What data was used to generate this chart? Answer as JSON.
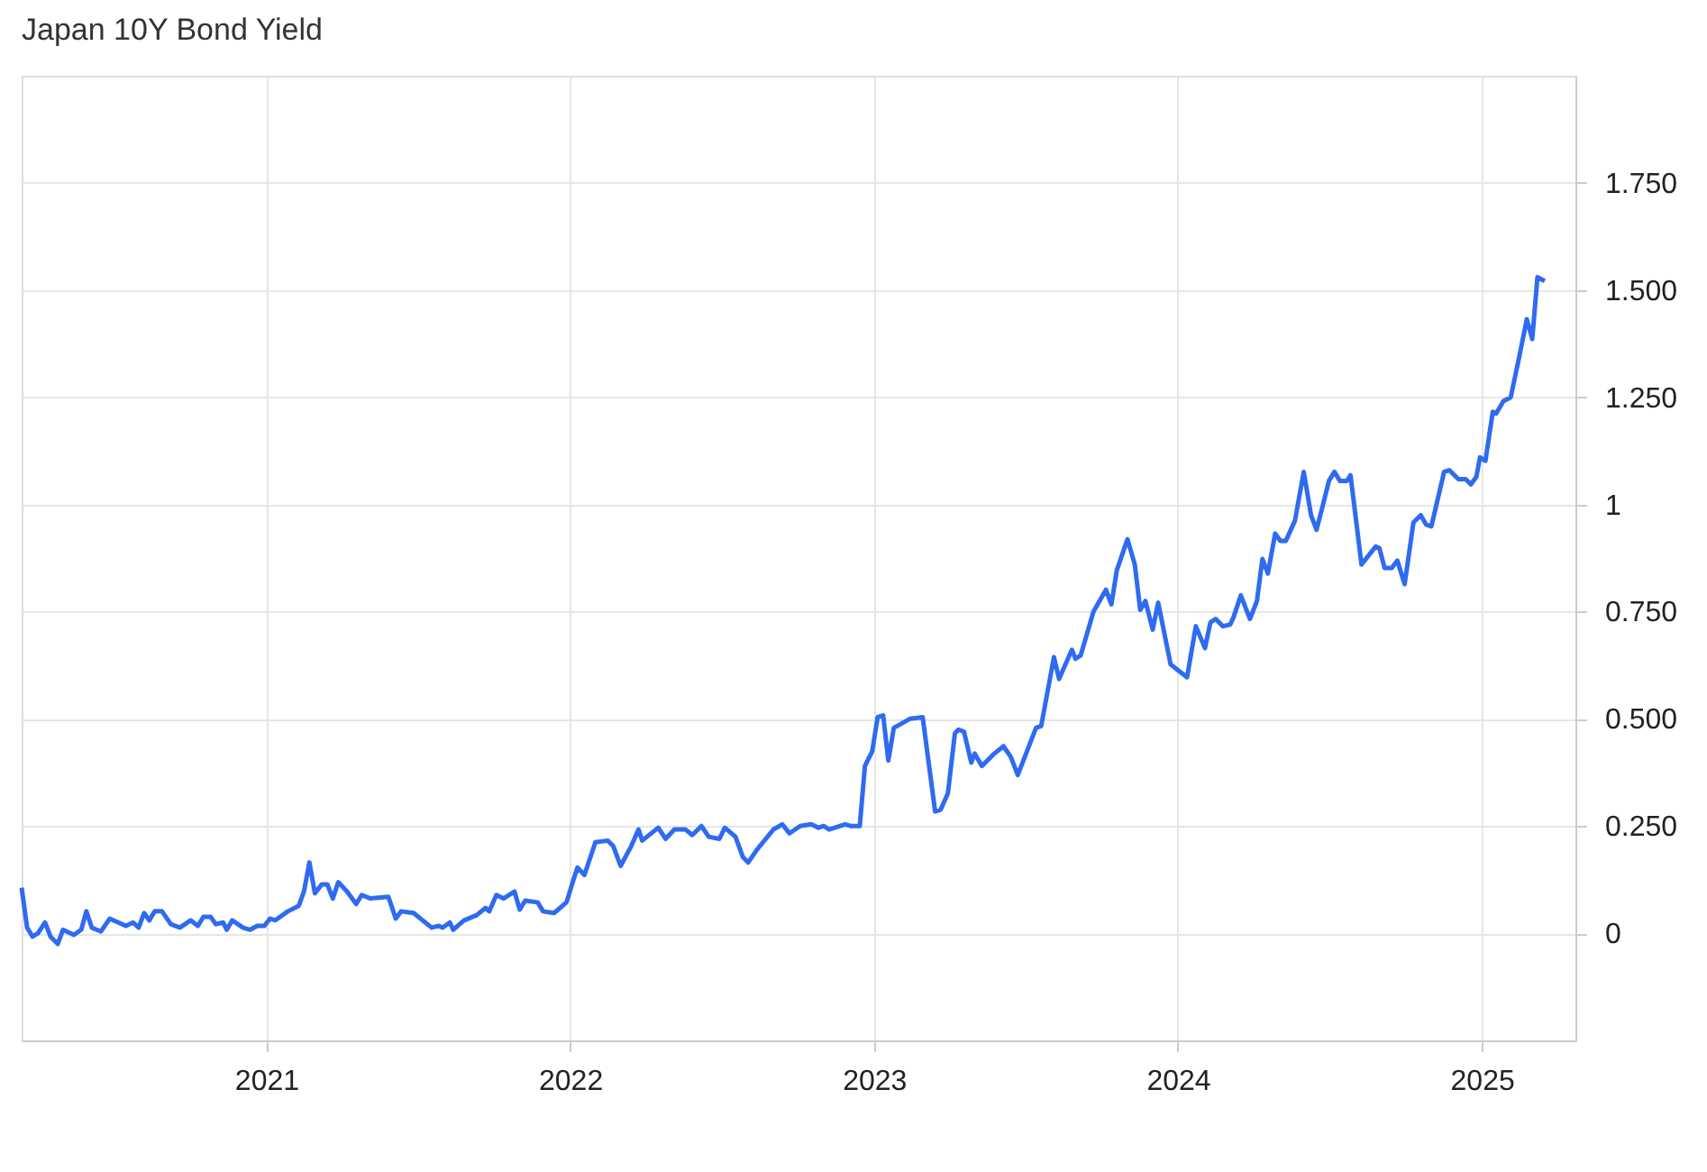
{
  "chart_data": {
    "type": "line",
    "title": "Japan 10Y Bond Yield",
    "x": [
      2020.195,
      2020.213,
      2020.231,
      2020.249,
      2020.272,
      2020.29,
      2020.314,
      2020.331,
      2020.367,
      2020.391,
      2020.408,
      2020.426,
      2020.456,
      2020.485,
      2020.538,
      2020.562,
      2020.58,
      2020.598,
      2020.615,
      2020.633,
      2020.657,
      2020.686,
      2020.716,
      2020.751,
      2020.775,
      2020.793,
      2020.817,
      2020.834,
      2020.858,
      2020.87,
      2020.888,
      2020.923,
      2020.947,
      2020.97,
      2020.994,
      2021.012,
      2021.03,
      2021.071,
      2021.107,
      2021.124,
      2021.142,
      2021.16,
      2021.183,
      2021.201,
      2021.219,
      2021.237,
      2021.266,
      2021.296,
      2021.314,
      2021.343,
      2021.402,
      2021.426,
      2021.444,
      2021.485,
      2021.544,
      2021.568,
      2021.58,
      2021.604,
      2021.615,
      2021.651,
      2021.692,
      2021.722,
      2021.734,
      2021.757,
      2021.781,
      2021.817,
      2021.834,
      2021.852,
      2021.893,
      2021.911,
      2021.947,
      2021.988,
      2022.012,
      2022.024,
      2022.047,
      2022.083,
      2022.124,
      2022.142,
      2022.166,
      2022.201,
      2022.225,
      2022.237,
      2022.29,
      2022.314,
      2022.343,
      2022.379,
      2022.402,
      2022.432,
      2022.456,
      2022.491,
      2022.509,
      2022.544,
      2022.568,
      2022.586,
      2022.615,
      2022.669,
      2022.698,
      2022.722,
      2022.757,
      2022.793,
      2022.817,
      2022.834,
      2022.852,
      2022.905,
      2022.923,
      2022.953,
      2022.97,
      2022.994,
      2023.012,
      2023.03,
      2023.047,
      2023.065,
      2023.118,
      2023.16,
      2023.201,
      2023.219,
      2023.243,
      2023.266,
      2023.278,
      2023.296,
      2023.32,
      2023.331,
      2023.355,
      2023.396,
      2023.426,
      2023.45,
      2023.473,
      2023.533,
      2023.55,
      2023.592,
      2023.609,
      2023.651,
      2023.663,
      2023.68,
      2023.722,
      2023.763,
      2023.781,
      2023.799,
      2023.834,
      2023.858,
      2023.876,
      2023.893,
      2023.917,
      2023.935,
      2023.976,
      2024.03,
      2024.059,
      2024.089,
      2024.107,
      2024.124,
      2024.148,
      2024.172,
      2024.183,
      2024.207,
      2024.237,
      2024.26,
      2024.278,
      2024.296,
      2024.32,
      2024.337,
      2024.355,
      2024.385,
      2024.414,
      2024.438,
      2024.456,
      2024.473,
      2024.497,
      2024.515,
      2024.533,
      2024.556,
      2024.568,
      2024.604,
      2024.651,
      2024.663,
      2024.68,
      2024.704,
      2024.722,
      2024.746,
      2024.775,
      2024.799,
      2024.817,
      2024.834,
      2024.876,
      2024.893,
      2024.923,
      2024.947,
      2024.964,
      2024.982,
      2024.994,
      2025.012,
      2025.036,
      2025.047,
      2025.071,
      2025.095,
      2025.124,
      2025.148,
      2025.166,
      2025.183,
      2025.207
    ],
    "series": [
      {
        "color": "#2f6bf0",
        "values": [
          0.106,
          0.013,
          -0.008,
          0,
          0.025,
          -0.008,
          -0.025,
          0.008,
          -0.004,
          0.008,
          0.051,
          0.013,
          0.004,
          0.034,
          0.017,
          0.025,
          0.013,
          0.047,
          0.03,
          0.051,
          0.051,
          0.021,
          0.013,
          0.03,
          0.017,
          0.038,
          0.038,
          0.021,
          0.025,
          0.008,
          0.03,
          0.013,
          0.008,
          0.017,
          0.017,
          0.034,
          0.03,
          0.051,
          0.064,
          0.097,
          0.165,
          0.093,
          0.114,
          0.114,
          0.081,
          0.119,
          0.097,
          0.068,
          0.089,
          0.081,
          0.085,
          0.034,
          0.051,
          0.047,
          0.013,
          0.017,
          0.013,
          0.025,
          0.008,
          0.03,
          0.042,
          0.059,
          0.051,
          0.089,
          0.081,
          0.097,
          0.055,
          0.076,
          0.072,
          0.051,
          0.047,
          0.072,
          0.127,
          0.153,
          0.136,
          0.212,
          0.216,
          0.203,
          0.157,
          0.203,
          0.242,
          0.216,
          0.246,
          0.22,
          0.242,
          0.242,
          0.229,
          0.25,
          0.225,
          0.22,
          0.246,
          0.225,
          0.178,
          0.165,
          0.195,
          0.242,
          0.254,
          0.233,
          0.25,
          0.254,
          0.246,
          0.25,
          0.242,
          0.254,
          0.25,
          0.25,
          0.39,
          0.424,
          0.504,
          0.508,
          0.403,
          0.479,
          0.5,
          0.504,
          0.284,
          0.288,
          0.326,
          0.466,
          0.475,
          0.47,
          0.398,
          0.419,
          0.39,
          0.419,
          0.436,
          0.411,
          0.369,
          0.479,
          0.483,
          0.644,
          0.593,
          0.661,
          0.64,
          0.648,
          0.75,
          0.801,
          0.767,
          0.847,
          0.919,
          0.86,
          0.754,
          0.775,
          0.708,
          0.771,
          0.627,
          0.597,
          0.716,
          0.665,
          0.725,
          0.733,
          0.716,
          0.72,
          0.737,
          0.788,
          0.733,
          0.775,
          0.873,
          0.839,
          0.932,
          0.915,
          0.915,
          0.962,
          1.076,
          0.975,
          0.941,
          0.987,
          1.055,
          1.076,
          1.055,
          1.055,
          1.068,
          0.86,
          0.902,
          0.898,
          0.852,
          0.852,
          0.869,
          0.814,
          0.958,
          0.975,
          0.953,
          0.949,
          1.076,
          1.08,
          1.059,
          1.059,
          1.047,
          1.064,
          1.11,
          1.102,
          1.216,
          1.212,
          1.241,
          1.25,
          1.347,
          1.432,
          1.386,
          1.53,
          1.521
        ]
      }
    ],
    "xlim": [
      2020.195,
      2025.308
    ],
    "xticks": [
      2021,
      2022,
      2023,
      2024,
      2025
    ],
    "ylim": [
      -0.25,
      2.0
    ],
    "yticks": [
      0,
      {
        "value": 0.25,
        "label": "0.250"
      },
      {
        "value": 0.5,
        "label": "0.500"
      },
      {
        "value": 0.75,
        "label": "0.750"
      },
      1,
      {
        "value": 1.25,
        "label": "1.250"
      },
      {
        "value": 1.5,
        "label": "1.500"
      },
      {
        "value": 1.75,
        "label": "1.750"
      }
    ],
    "grid": true
  }
}
